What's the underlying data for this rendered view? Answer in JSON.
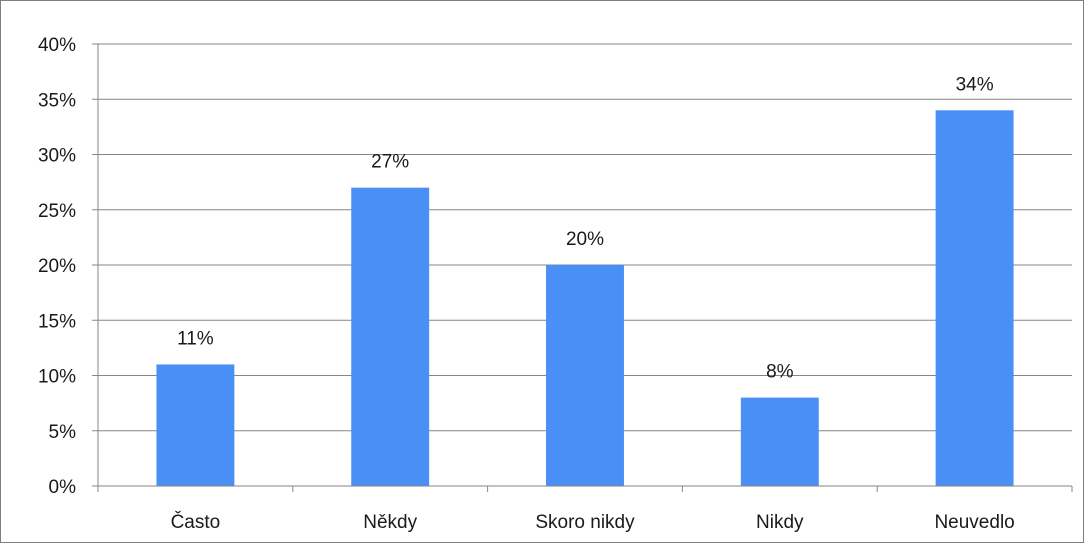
{
  "chart_data": {
    "type": "bar",
    "categories": [
      "Často",
      "Někdy",
      "Skoro nikdy",
      "Nikdy",
      "Neuvedlo"
    ],
    "values": [
      11,
      27,
      20,
      8,
      34
    ],
    "data_labels": [
      "11%",
      "27%",
      "20%",
      "8%",
      "34%"
    ],
    "ylim": [
      0,
      40
    ],
    "y_ticks": [
      0,
      5,
      10,
      15,
      20,
      25,
      30,
      35,
      40
    ],
    "y_tick_labels": [
      "0%",
      "5%",
      "10%",
      "15%",
      "20%",
      "25%",
      "30%",
      "35%",
      "40%"
    ],
    "grid": true,
    "bar_color": "#4a8ff5",
    "legend": "none"
  }
}
